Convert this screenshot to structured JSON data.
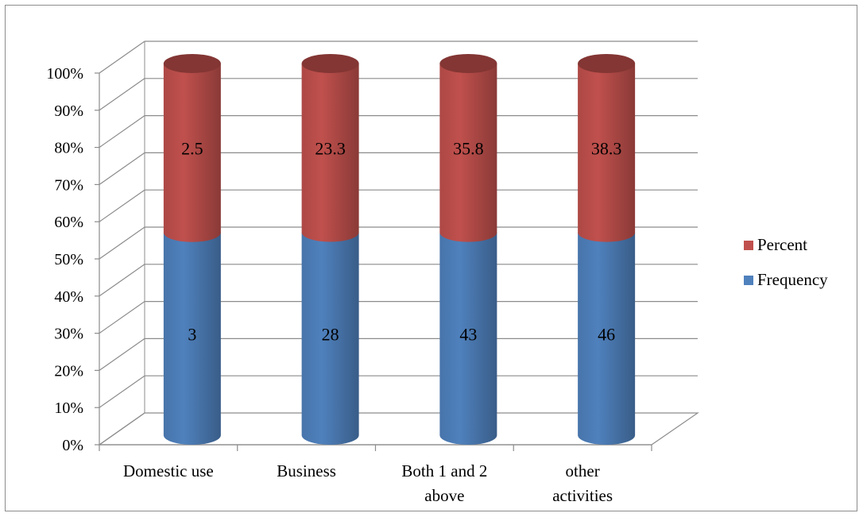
{
  "chart_data": {
    "type": "bar",
    "stacked": "percent",
    "categories": [
      [
        "Domestic use"
      ],
      [
        "Business"
      ],
      [
        "Both 1 and 2",
        "above"
      ],
      [
        "other",
        "activities"
      ]
    ],
    "series": [
      {
        "name": "Frequency",
        "values": [
          3,
          28,
          43,
          46
        ],
        "labels": [
          "3",
          "28",
          "43",
          "46"
        ],
        "color": "#4f81bd"
      },
      {
        "name": "Percent",
        "values": [
          2.5,
          23.3,
          35.8,
          38.3
        ],
        "labels": [
          "2.5",
          "23.3",
          "35.8",
          "38.3"
        ],
        "color": "#c0504d"
      }
    ],
    "y_ticks": [
      "0%",
      "10%",
      "20%",
      "30%",
      "40%",
      "50%",
      "60%",
      "70%",
      "80%",
      "90%",
      "100%"
    ],
    "ylim": [
      0,
      100
    ],
    "grid": true,
    "legend_position": "right",
    "legend_order": [
      "Percent",
      "Frequency"
    ]
  }
}
